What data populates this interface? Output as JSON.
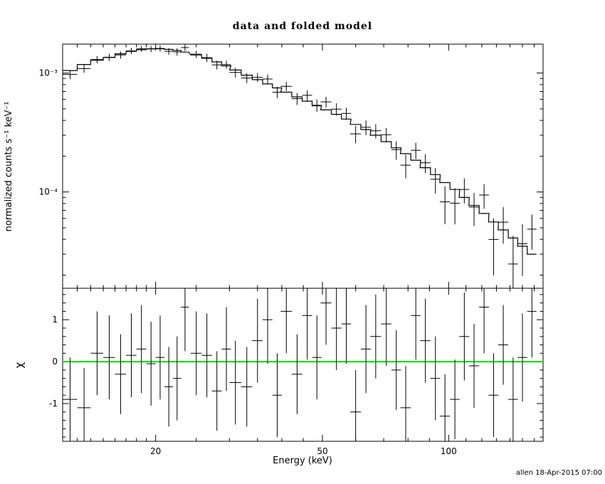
{
  "footer": {
    "timestamp": "allen 18-Apr-2015 07:00"
  },
  "chart_data": {
    "type": "scatter",
    "title": "data and folded model",
    "xlabel": "Energy (keV)",
    "xscale": "log",
    "xlim": [
      12,
      168
    ],
    "xticks_major": [
      20,
      50,
      100
    ],
    "xtick_labels": [
      "20",
      "50",
      "100"
    ],
    "xticks_minor": [
      13,
      14,
      15,
      16,
      17,
      18,
      19,
      25,
      30,
      35,
      40,
      45,
      60,
      70,
      80,
      90,
      110,
      120,
      130,
      140,
      150,
      160
    ],
    "legend": "none",
    "grid": false,
    "panels": [
      {
        "name": "spectrum",
        "ylabel": "normalized counts s⁻¹ keV⁻¹",
        "yscale": "log",
        "ylim": [
          1.55e-05,
          0.00175
        ],
        "yticks_major": [
          0.001,
          0.0001
        ],
        "ytick_labels": [
          "10⁻³",
          "10⁻⁴"
        ],
        "series_styles": [
          "data: black crosses with error bars",
          "folded model: black step histogram"
        ]
      },
      {
        "name": "residuals",
        "ylabel": "χ",
        "yscale": "linear",
        "ylim": [
          -1.9,
          1.75
        ],
        "yticks_major": [
          -1,
          0,
          1
        ],
        "ytick_labels": [
          "-1",
          "0",
          "1"
        ],
        "zero_line_color": "#00dd00"
      }
    ],
    "bins": {
      "energy": [
        12.5,
        13.5,
        14.5,
        15.5,
        16.5,
        17.5,
        18.5,
        19.5,
        20.5,
        21.5,
        22.5,
        23.5,
        25,
        26.5,
        28,
        29.5,
        31,
        33,
        35,
        37,
        39,
        41,
        43.5,
        46,
        48.5,
        51,
        54,
        57,
        60,
        63.5,
        67,
        71,
        75,
        79,
        83.5,
        88,
        93,
        98,
        103.5,
        109,
        115,
        121.5,
        128,
        135,
        142.5,
        150,
        158
      ],
      "half_width": [
        0.5,
        0.5,
        0.5,
        0.5,
        0.5,
        0.5,
        0.5,
        0.5,
        0.5,
        0.5,
        0.5,
        0.5,
        0.75,
        0.75,
        0.75,
        0.75,
        1,
        1,
        1,
        1,
        1,
        1.25,
        1.25,
        1.25,
        1.25,
        1.5,
        1.5,
        1.5,
        1.75,
        1.75,
        2,
        2,
        2,
        2.25,
        2.25,
        2.5,
        2.5,
        2.75,
        2.75,
        3,
        3.25,
        3.25,
        3.5,
        3.75,
        3.75,
        4,
        4
      ],
      "counts": [
        0.000974,
        0.001089,
        0.0013,
        0.001359,
        0.00142,
        0.001534,
        0.001598,
        0.001595,
        0.00161,
        0.001523,
        0.001507,
        0.001637,
        0.00144,
        0.001346,
        0.001171,
        0.001178,
        0.001012,
        0.000908,
        0.00092,
        0.000891,
        0.00069,
        0.000773,
        0.000609,
        0.00065,
        0.000536,
        0.000572,
        0.000497,
        0.000458,
        0.000308,
        0.00035,
        0.000327,
        0.000303,
        0.000227,
        0.000168,
        0.000224,
        0.000176,
        0.000128,
        8.26e-05,
        8.04e-05,
        0.000105,
        7.47e-05,
        9.43e-05,
        3.99e-05,
        5.57e-05,
        2.48e-05,
        3.67e-05,
        4.87e-05
      ],
      "counts_err": [
        8.4e-05,
        8.3e-05,
        9e-05,
        9.5e-05,
        0.0001,
        9.1e-05,
        9.4e-05,
        9.6e-05,
        9.6e-05,
        9.5e-05,
        0.000109,
        0.000105,
        9.9e-05,
        0.000106,
        9.9e-05,
        9.2e-05,
        9.5e-05,
        8.6e-05,
        7.9e-05,
        8.1e-05,
        7.5e-05,
        6.9e-05,
        6.9e-05,
        6.4e-05,
        6.4e-05,
        5.9e-05,
        5.9e-05,
        5.3e-05,
        5.2e-05,
        5e-05,
        4.5e-05,
        4.2e-05,
        4e-05,
        3.8e-05,
        3.5e-05,
        3.2e-05,
        3.1e-05,
        2.9e-05,
        2.7e-05,
        2.5e-05,
        2.3e-05,
        2.2e-05,
        2e-05,
        1.9e-05,
        1.8e-05,
        1.7e-05,
        1.6e-05
      ],
      "model": [
        0.00105,
        0.00118,
        0.00128,
        0.00135,
        0.00145,
        0.00152,
        0.00157,
        0.0016,
        0.0016,
        0.00158,
        0.00155,
        0.0015,
        0.00142,
        0.00133,
        0.00124,
        0.00115,
        0.00106,
        0.00096,
        0.00088,
        0.00081,
        0.00075,
        0.00069,
        0.00063,
        0.00058,
        0.00053,
        0.00049,
        0.00045,
        0.00041,
        0.00037,
        0.000335,
        0.0003,
        0.000265,
        0.000235,
        0.00021,
        0.000185,
        0.00016,
        0.00014,
        0.00012,
        0.000105,
        9e-05,
        7.7e-05,
        6.6e-05,
        5.6e-05,
        4.8e-05,
        4.1e-05,
        3.5e-05,
        3e-05
      ],
      "chi": [
        -0.9,
        -1.1,
        0.2,
        0.1,
        -0.3,
        0.15,
        0.3,
        -0.05,
        0.1,
        -0.6,
        -0.4,
        1.3,
        0.2,
        0.15,
        -0.7,
        0.3,
        -0.5,
        -0.6,
        0.5,
        1.0,
        -0.8,
        1.2,
        -0.3,
        1.1,
        0.1,
        1.4,
        0.8,
        0.9,
        -1.2,
        0.3,
        0.6,
        0.9,
        -0.2,
        -1.1,
        1.1,
        0.5,
        -0.4,
        -1.3,
        -0.9,
        0.6,
        -0.1,
        1.3,
        -0.8,
        0.4,
        -0.9,
        0.1,
        1.2
      ],
      "chi_err": [
        1,
        0.95,
        1,
        1,
        0.95,
        1,
        1.05,
        1,
        1,
        0.95,
        1,
        1.05,
        1,
        1,
        0.95,
        1,
        1,
        0.95,
        1,
        1.05,
        1,
        1,
        0.95,
        1.05,
        1,
        1,
        1,
        0.95,
        1,
        1.05,
        1,
        1,
        0.95,
        1,
        1.05,
        1,
        1,
        1,
        0.95,
        1.05,
        1,
        1.1,
        1,
        0.95,
        1,
        1.05,
        1.1
      ]
    }
  }
}
